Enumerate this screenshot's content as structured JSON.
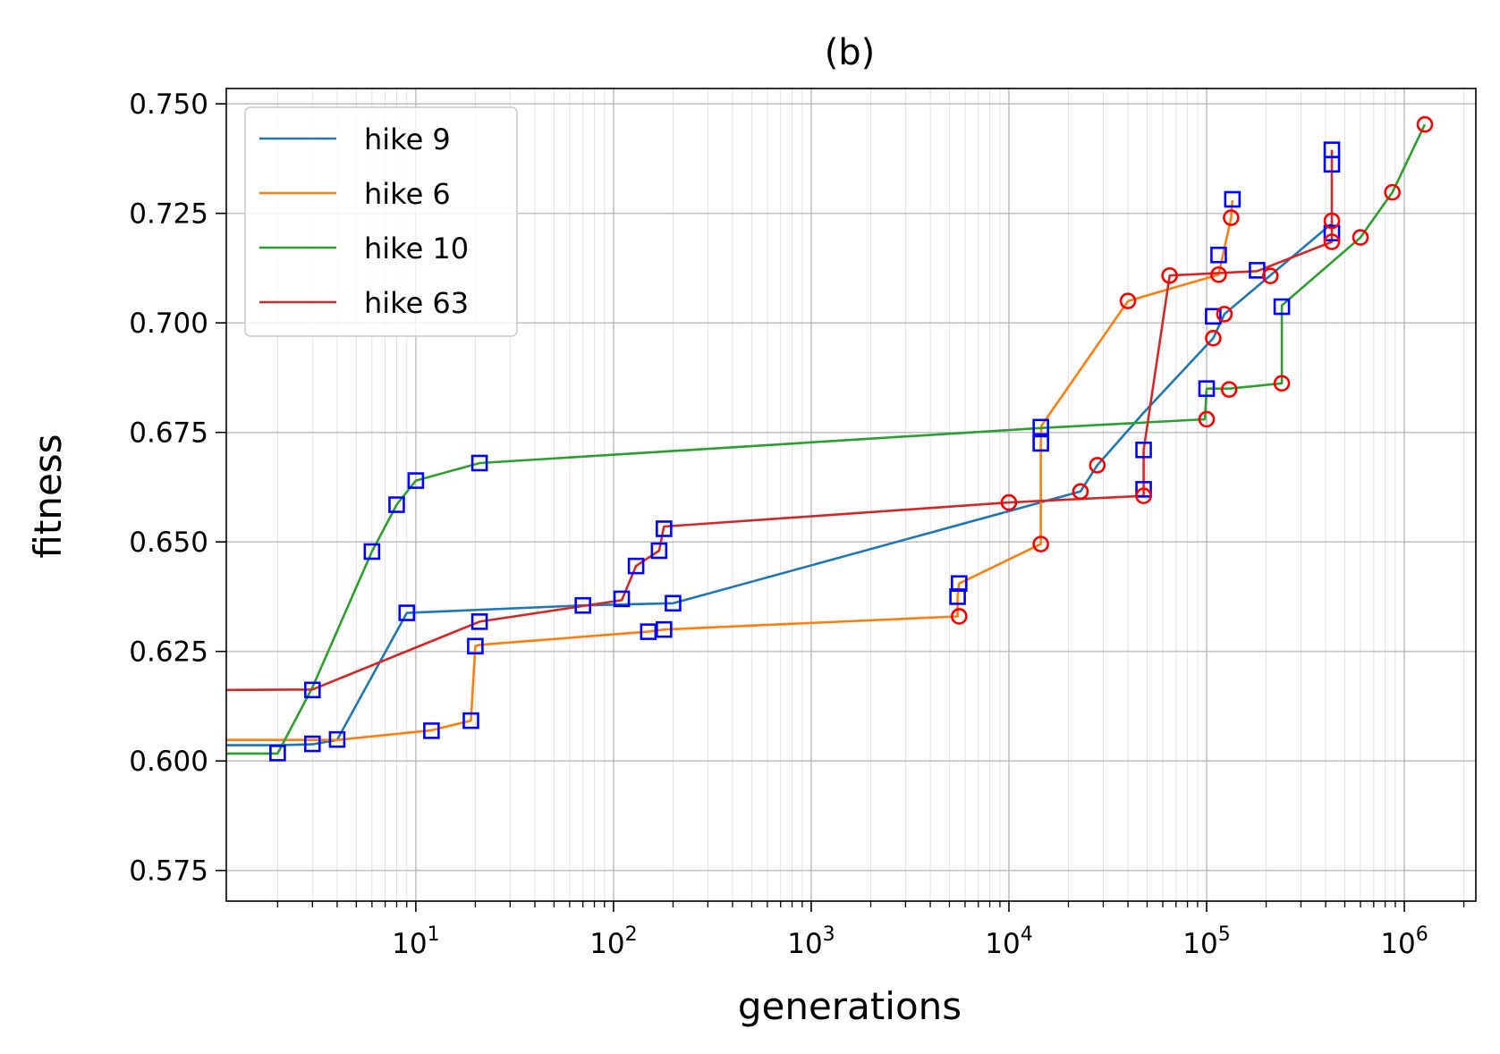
{
  "chart_data": {
    "type": "line",
    "title": "(b)",
    "xlabel": "generations",
    "ylabel": "fitness",
    "xscale": "log",
    "xlim": [
      1.1,
      2300000
    ],
    "ylim": [
      0.568,
      0.7535
    ],
    "grid": "major and minor",
    "legend_position": "top-left",
    "x_ticks": [
      {
        "value": 10,
        "base": "10",
        "exp": "1"
      },
      {
        "value": 100,
        "base": "10",
        "exp": "2"
      },
      {
        "value": 1000,
        "base": "10",
        "exp": "3"
      },
      {
        "value": 10000,
        "base": "10",
        "exp": "4"
      },
      {
        "value": 100000,
        "base": "10",
        "exp": "5"
      },
      {
        "value": 1000000,
        "base": "10",
        "exp": "6"
      }
    ],
    "y_ticks": [
      "0.575",
      "0.600",
      "0.625",
      "0.650",
      "0.675",
      "0.700",
      "0.725",
      "0.750"
    ],
    "series": [
      {
        "name": "hike 9",
        "color": "#1f77b4",
        "points": [
          [
            1.1,
            0.6036
          ],
          [
            2,
            0.6036
          ],
          [
            3,
            0.6038
          ],
          [
            4,
            0.6048
          ],
          [
            9,
            0.6338
          ],
          [
            70,
            0.6355
          ],
          [
            200,
            0.636
          ],
          [
            23000,
            0.6615
          ],
          [
            28000,
            0.6675
          ],
          [
            48000,
            0.6795
          ],
          [
            108000,
            0.6965
          ],
          [
            123000,
            0.702
          ],
          [
            425000,
            0.7225
          ]
        ]
      },
      {
        "name": "hike 6",
        "color": "#ff7f0e",
        "points": [
          [
            1.1,
            0.6048
          ],
          [
            3,
            0.6048
          ],
          [
            4,
            0.6048
          ],
          [
            12,
            0.607
          ],
          [
            19,
            0.6092
          ],
          [
            20,
            0.6262
          ],
          [
            21,
            0.6265
          ],
          [
            150,
            0.6295
          ],
          [
            180,
            0.63
          ],
          [
            5500,
            0.633
          ],
          [
            5500,
            0.6375
          ],
          [
            5600,
            0.6405
          ],
          [
            14500,
            0.6495
          ],
          [
            14500,
            0.6725
          ],
          [
            14600,
            0.6765
          ],
          [
            40000,
            0.705
          ],
          [
            115000,
            0.711
          ],
          [
            133000,
            0.724
          ],
          [
            135000,
            0.728
          ]
        ]
      },
      {
        "name": "hike 10",
        "color": "#2ca02c",
        "points": [
          [
            1.1,
            0.6017
          ],
          [
            2,
            0.6017
          ],
          [
            3,
            0.6168
          ],
          [
            6,
            0.6478
          ],
          [
            8,
            0.6585
          ],
          [
            10,
            0.664
          ],
          [
            21,
            0.668
          ],
          [
            14500,
            0.676
          ],
          [
            98000,
            0.678
          ],
          [
            100000,
            0.685
          ],
          [
            130000,
            0.685
          ],
          [
            240000,
            0.6862
          ],
          [
            240000,
            0.704
          ],
          [
            600000,
            0.7195
          ],
          [
            870000,
            0.7298
          ],
          [
            1270000,
            0.7453
          ]
        ]
      },
      {
        "name": "hike 63",
        "color": "#d62728",
        "points": [
          [
            1.1,
            0.6162
          ],
          [
            3,
            0.6163
          ],
          [
            21,
            0.6318
          ],
          [
            110,
            0.6367
          ],
          [
            130,
            0.6445
          ],
          [
            170,
            0.648
          ],
          [
            180,
            0.6535
          ],
          [
            10000,
            0.659
          ],
          [
            48000,
            0.6605
          ],
          [
            48000,
            0.671
          ],
          [
            65000,
            0.7108
          ],
          [
            180000,
            0.7118
          ],
          [
            430000,
            0.7185
          ],
          [
            430000,
            0.7233
          ],
          [
            430000,
            0.7365
          ],
          [
            430000,
            0.7395
          ]
        ]
      }
    ],
    "square_markers": {
      "color": "#0000ff",
      "points": [
        [
          2,
          0.6018
        ],
        [
          3,
          0.6039
        ],
        [
          3,
          0.6162
        ],
        [
          4,
          0.6049
        ],
        [
          6,
          0.6478
        ],
        [
          8,
          0.6585
        ],
        [
          9,
          0.6338
        ],
        [
          10,
          0.664
        ],
        [
          12,
          0.6069
        ],
        [
          19,
          0.6092
        ],
        [
          20,
          0.6262
        ],
        [
          21,
          0.668
        ],
        [
          21,
          0.6318
        ],
        [
          70,
          0.6355
        ],
        [
          110,
          0.637
        ],
        [
          130,
          0.6445
        ],
        [
          150,
          0.6295
        ],
        [
          170,
          0.648
        ],
        [
          180,
          0.653
        ],
        [
          180,
          0.63
        ],
        [
          200,
          0.636
        ],
        [
          5500,
          0.6375
        ],
        [
          5600,
          0.6405
        ],
        [
          14500,
          0.6725
        ],
        [
          14500,
          0.6762
        ],
        [
          48000,
          0.662
        ],
        [
          48000,
          0.671
        ],
        [
          100000,
          0.685
        ],
        [
          108000,
          0.7015
        ],
        [
          115000,
          0.7155
        ],
        [
          135000,
          0.7282
        ],
        [
          180000,
          0.712
        ],
        [
          240000,
          0.7037
        ],
        [
          430000,
          0.7205
        ],
        [
          430000,
          0.7362
        ],
        [
          430000,
          0.7395
        ]
      ]
    },
    "circle_markers": {
      "color": "#ff0000",
      "points": [
        [
          5600,
          0.633
        ],
        [
          10000,
          0.659
        ],
        [
          14500,
          0.6495
        ],
        [
          23000,
          0.6615
        ],
        [
          28000,
          0.6675
        ],
        [
          40000,
          0.705
        ],
        [
          48000,
          0.6605
        ],
        [
          65000,
          0.7108
        ],
        [
          100000,
          0.678
        ],
        [
          108000,
          0.6965
        ],
        [
          115000,
          0.711
        ],
        [
          123000,
          0.702
        ],
        [
          130000,
          0.6848
        ],
        [
          133000,
          0.724
        ],
        [
          210000,
          0.7107
        ],
        [
          240000,
          0.6862
        ],
        [
          430000,
          0.7233
        ],
        [
          430000,
          0.7185
        ],
        [
          600000,
          0.7195
        ],
        [
          870000,
          0.7298
        ],
        [
          1270000,
          0.7453
        ]
      ]
    }
  }
}
